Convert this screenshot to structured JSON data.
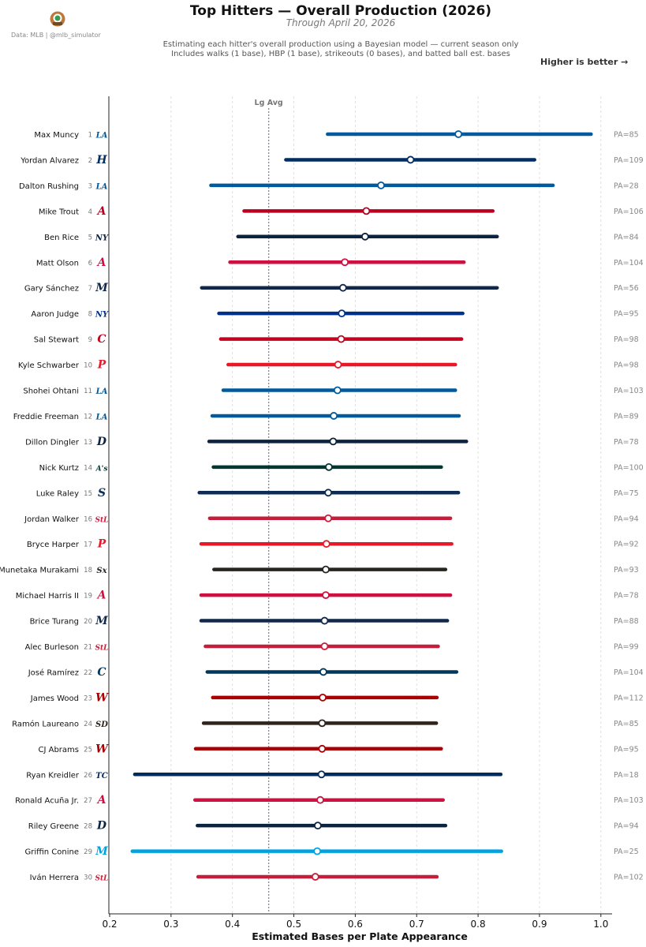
{
  "header": {
    "title": "Top Hitters — Overall Production (2026)",
    "subtitle": "Through April 20, 2026",
    "description_line1": "Estimating each hitter's overall production using a Bayesian model — current season only",
    "description_line2": "Includes walks (1 base), HBP (1 base), strikeouts (0 bases), and batted ball est. bases",
    "credit": "Data: MLB  |  @mlb_simulator",
    "higher_is_better": "Higher is better →"
  },
  "chart_data": {
    "type": "scatter",
    "chart_kind": "point-with-interval (forest plot)",
    "xlabel": "Estimated Bases per Plate Appearance",
    "xlim": [
      0.2,
      1.02
    ],
    "xticks": [
      0.2,
      0.3,
      0.4,
      0.5,
      0.6,
      0.7,
      0.8,
      0.9,
      1.0
    ],
    "xtick_labels": [
      "0.2",
      "0.3",
      "0.4",
      "0.5",
      "0.6",
      "0.7",
      "0.8",
      "0.9",
      "1.0"
    ],
    "grid": "vertical dashed",
    "reference_line": {
      "label": "Lg Avg",
      "x": 0.459
    },
    "players": [
      {
        "rank": "1",
        "name": "Max Muncy",
        "team": "LAD",
        "logo_text": "LA",
        "color": "#005A9C",
        "estimate": 0.768,
        "low": 0.555,
        "high": 0.984,
        "pa": "PA=85"
      },
      {
        "rank": "2",
        "name": "Yordan Alvarez",
        "team": "HOU",
        "logo_text": "H",
        "color": "#002D62",
        "estimate": 0.69,
        "low": 0.487,
        "high": 0.892,
        "pa": "PA=109"
      },
      {
        "rank": "3",
        "name": "Dalton Rushing",
        "team": "LAD",
        "logo_text": "LA",
        "color": "#005A9C",
        "estimate": 0.642,
        "low": 0.365,
        "high": 0.922,
        "pa": "PA=28"
      },
      {
        "rank": "4",
        "name": "Mike Trout",
        "team": "LAA",
        "logo_text": "A",
        "color": "#BA0021",
        "estimate": 0.618,
        "low": 0.419,
        "high": 0.824,
        "pa": "PA=106"
      },
      {
        "rank": "5",
        "name": "Ben Rice",
        "team": "NYY",
        "logo_text": "NY",
        "color": "#0C2340",
        "estimate": 0.616,
        "low": 0.409,
        "high": 0.831,
        "pa": "PA=84"
      },
      {
        "rank": "6",
        "name": "Matt Olson",
        "team": "ATL",
        "logo_text": "A",
        "color": "#CE1141",
        "estimate": 0.583,
        "low": 0.396,
        "high": 0.777,
        "pa": "PA=104"
      },
      {
        "rank": "7",
        "name": "Gary Sánchez",
        "team": "MIL",
        "logo_text": "M",
        "color": "#12284B",
        "estimate": 0.58,
        "low": 0.35,
        "high": 0.831,
        "pa": "PA=56"
      },
      {
        "rank": "8",
        "name": "Aaron Judge",
        "team": "NYY",
        "logo_text": "NY",
        "color": "#003087",
        "estimate": 0.578,
        "low": 0.378,
        "high": 0.775,
        "pa": "PA=95"
      },
      {
        "rank": "9",
        "name": "Sal Stewart",
        "team": "CIN",
        "logo_text": "C",
        "color": "#C6011F",
        "estimate": 0.577,
        "low": 0.381,
        "high": 0.773,
        "pa": "PA=98"
      },
      {
        "rank": "10",
        "name": "Kyle Schwarber",
        "team": "PHI",
        "logo_text": "P",
        "color": "#E81828",
        "estimate": 0.572,
        "low": 0.393,
        "high": 0.763,
        "pa": "PA=98"
      },
      {
        "rank": "11",
        "name": "Shohei Ohtani",
        "team": "LAD",
        "logo_text": "LA",
        "color": "#005A9C",
        "estimate": 0.571,
        "low": 0.385,
        "high": 0.763,
        "pa": "PA=103"
      },
      {
        "rank": "12",
        "name": "Freddie Freeman",
        "team": "LAD",
        "logo_text": "LA",
        "color": "#005A9C",
        "estimate": 0.565,
        "low": 0.367,
        "high": 0.769,
        "pa": "PA=89"
      },
      {
        "rank": "13",
        "name": "Dillon Dingler",
        "team": "DET",
        "logo_text": "D",
        "color": "#0C2340",
        "estimate": 0.564,
        "low": 0.362,
        "high": 0.781,
        "pa": "PA=78"
      },
      {
        "rank": "14",
        "name": "Nick Kurtz",
        "team": "ATH",
        "logo_text": "A's",
        "color": "#003831",
        "estimate": 0.557,
        "low": 0.369,
        "high": 0.74,
        "pa": "PA=100"
      },
      {
        "rank": "15",
        "name": "Luke Raley",
        "team": "SEA",
        "logo_text": "S",
        "color": "#0C2C56",
        "estimate": 0.556,
        "low": 0.346,
        "high": 0.768,
        "pa": "PA=75"
      },
      {
        "rank": "16",
        "name": "Jordan Walker",
        "team": "STL",
        "logo_text": "StL",
        "color": "#C41E3A",
        "estimate": 0.556,
        "low": 0.363,
        "high": 0.755,
        "pa": "PA=94"
      },
      {
        "rank": "17",
        "name": "Bryce Harper",
        "team": "PHI",
        "logo_text": "P",
        "color": "#E81828",
        "estimate": 0.553,
        "low": 0.349,
        "high": 0.757,
        "pa": "PA=92"
      },
      {
        "rank": "18",
        "name": "Munetaka Murakami",
        "team": "CWS",
        "logo_text": "Sx",
        "color": "#27251F",
        "estimate": 0.552,
        "low": 0.37,
        "high": 0.747,
        "pa": "PA=93"
      },
      {
        "rank": "19",
        "name": "Michael Harris II",
        "team": "ATL",
        "logo_text": "A",
        "color": "#CE1141",
        "estimate": 0.552,
        "low": 0.349,
        "high": 0.755,
        "pa": "PA=78"
      },
      {
        "rank": "20",
        "name": "Brice Turang",
        "team": "MIL",
        "logo_text": "M",
        "color": "#12284B",
        "estimate": 0.55,
        "low": 0.349,
        "high": 0.75,
        "pa": "PA=88"
      },
      {
        "rank": "21",
        "name": "Alec Burleson",
        "team": "STL",
        "logo_text": "StL",
        "color": "#C41E3A",
        "estimate": 0.55,
        "low": 0.356,
        "high": 0.735,
        "pa": "PA=99"
      },
      {
        "rank": "22",
        "name": "José Ramírez",
        "team": "CLE",
        "logo_text": "C",
        "color": "#00385D",
        "estimate": 0.548,
        "low": 0.359,
        "high": 0.765,
        "pa": "PA=104"
      },
      {
        "rank": "23",
        "name": "James Wood",
        "team": "WSH",
        "logo_text": "W",
        "color": "#AB0003",
        "estimate": 0.547,
        "low": 0.368,
        "high": 0.733,
        "pa": "PA=112"
      },
      {
        "rank": "24",
        "name": "Ramón Laureano",
        "team": "SD",
        "logo_text": "SD",
        "color": "#2F241D",
        "estimate": 0.546,
        "low": 0.353,
        "high": 0.732,
        "pa": "PA=85"
      },
      {
        "rank": "25",
        "name": "CJ Abrams",
        "team": "WSH",
        "logo_text": "W",
        "color": "#AB0003",
        "estimate": 0.546,
        "low": 0.34,
        "high": 0.74,
        "pa": "PA=95"
      },
      {
        "rank": "26",
        "name": "Ryan Kreidler",
        "team": "MIN",
        "logo_text": "TC",
        "color": "#002B5C",
        "estimate": 0.545,
        "low": 0.241,
        "high": 0.837,
        "pa": "PA=18"
      },
      {
        "rank": "27",
        "name": "Ronald Acuña Jr.",
        "team": "ATL",
        "logo_text": "A",
        "color": "#CE1141",
        "estimate": 0.543,
        "low": 0.339,
        "high": 0.743,
        "pa": "PA=103"
      },
      {
        "rank": "28",
        "name": "Riley Greene",
        "team": "DET",
        "logo_text": "D",
        "color": "#0C2340",
        "estimate": 0.539,
        "low": 0.343,
        "high": 0.747,
        "pa": "PA=94"
      },
      {
        "rank": "29",
        "name": "Griffin Conine",
        "team": "MIA",
        "logo_text": "M",
        "color": "#00A3E0",
        "estimate": 0.538,
        "low": 0.237,
        "high": 0.838,
        "pa": "PA=25"
      },
      {
        "rank": "30",
        "name": "Iván Herrera",
        "team": "STL",
        "logo_text": "StL",
        "color": "#C41E3A",
        "estimate": 0.535,
        "low": 0.344,
        "high": 0.733,
        "pa": "PA=102"
      }
    ]
  }
}
